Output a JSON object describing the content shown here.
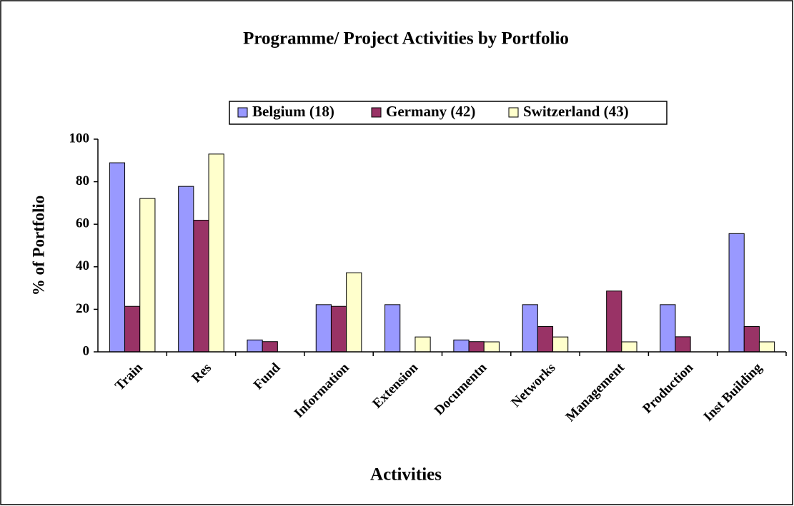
{
  "chart_data": {
    "type": "bar",
    "title": "Programme/ Project Activities by Portfolio",
    "x_label": "Activities",
    "y_label": "% of Portfolio",
    "categories": [
      "Train",
      "Res",
      "Fund",
      "Information",
      "Extension",
      "Documentn",
      "Networks",
      "Management",
      "Production",
      "Inst Building"
    ],
    "series": [
      {
        "name": "Belgium (18)",
        "color": "#9999ff",
        "values": [
          88.9,
          77.8,
          5.6,
          22.2,
          22.2,
          5.6,
          22.2,
          0,
          22.2,
          55.6
        ]
      },
      {
        "name": "Germany (42)",
        "color": "#993366",
        "values": [
          21.4,
          61.9,
          4.8,
          21.4,
          0,
          4.8,
          11.9,
          28.6,
          7.1,
          11.9
        ]
      },
      {
        "name": "Switzerland (43)",
        "color": "#ffffcc",
        "values": [
          72.1,
          93.0,
          0,
          37.2,
          7.0,
          4.7,
          7.0,
          4.7,
          0,
          4.7
        ]
      }
    ],
    "ylim": [
      0,
      100
    ],
    "yticks": [
      0,
      20,
      40,
      60,
      80,
      100
    ],
    "grid": false,
    "legend": "top"
  }
}
